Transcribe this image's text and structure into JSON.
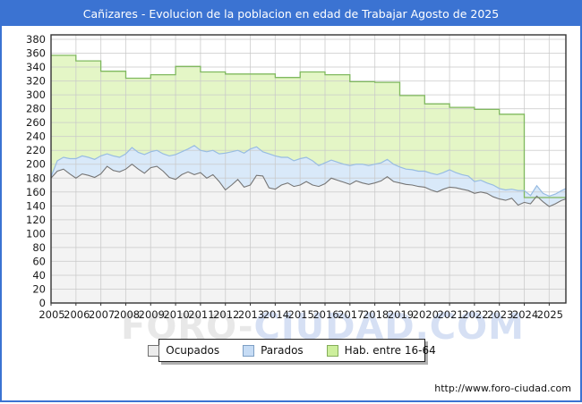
{
  "title": "Cañizares - Evolucion de la poblacion en edad de Trabajar Agosto de 2025",
  "watermark": {
    "left": "FORO-",
    "right": "CIUDAD.COM"
  },
  "footer": {
    "url": "http://www.foro-ciudad.com"
  },
  "colors": {
    "frame_blue": "#3b73d2",
    "grid": "#c9c9c9",
    "plot_border": "#333333",
    "ocupados_line": "#757575",
    "ocupados_fill": "#f3f3f3",
    "parados_line": "#98bce2",
    "parados_fill": "#d9e9f9",
    "hab_line": "#80b95f",
    "hab_fill": "#e4f6c6"
  },
  "legend": {
    "items": [
      {
        "label": "Ocupados",
        "fill": "#ececec",
        "border": "#707070"
      },
      {
        "label": "Parados",
        "fill": "#c6dcf5",
        "border": "#7d9fc4"
      },
      {
        "label": "Hab. entre 16-64",
        "fill": "#cdef9c",
        "border": "#84ad5a"
      }
    ]
  },
  "chart_data": {
    "type": "area",
    "title": "Cañizares - Evolucion de la poblacion en edad de Trabajar Agosto de 2025",
    "xlabel": "",
    "ylabel": "",
    "xlim": [
      2005,
      2025.67
    ],
    "ylim": [
      0,
      380
    ],
    "grid": true,
    "legend_position": "bottom",
    "y_ticks": [
      0,
      20,
      40,
      60,
      80,
      100,
      120,
      140,
      160,
      180,
      200,
      220,
      240,
      260,
      280,
      300,
      320,
      340,
      360,
      380
    ],
    "x_ticks": [
      2005,
      2006,
      2007,
      2008,
      2009,
      2010,
      2011,
      2012,
      2013,
      2014,
      2015,
      2016,
      2017,
      2018,
      2019,
      2020,
      2021,
      2022,
      2023,
      2024,
      2025
    ],
    "hab_16_64": {
      "name": "Hab. entre 16-64",
      "note": "yearly step series (padron); value drops sharply in 2024",
      "years": [
        2005,
        2006,
        2007,
        2008,
        2009,
        2010,
        2011,
        2012,
        2013,
        2014,
        2015,
        2016,
        2017,
        2018,
        2019,
        2020,
        2021,
        2022,
        2023,
        2024,
        2025
      ],
      "values": [
        357,
        349,
        334,
        324,
        329,
        341,
        333,
        330,
        330,
        325,
        333,
        329,
        319,
        318,
        299,
        287,
        282,
        279,
        272,
        152,
        152
      ]
    },
    "x": [
      2005.0,
      2005.25,
      2005.5,
      2005.75,
      2006.0,
      2006.25,
      2006.5,
      2006.75,
      2007.0,
      2007.25,
      2007.5,
      2007.75,
      2008.0,
      2008.25,
      2008.5,
      2008.75,
      2009.0,
      2009.25,
      2009.5,
      2009.75,
      2010.0,
      2010.25,
      2010.5,
      2010.75,
      2011.0,
      2011.25,
      2011.5,
      2011.75,
      2012.0,
      2012.25,
      2012.5,
      2012.75,
      2013.0,
      2013.25,
      2013.5,
      2013.75,
      2014.0,
      2014.25,
      2014.5,
      2014.75,
      2015.0,
      2015.25,
      2015.5,
      2015.75,
      2016.0,
      2016.25,
      2016.5,
      2016.75,
      2017.0,
      2017.25,
      2017.5,
      2017.75,
      2018.0,
      2018.25,
      2018.5,
      2018.75,
      2019.0,
      2019.25,
      2019.5,
      2019.75,
      2020.0,
      2020.25,
      2020.5,
      2020.75,
      2021.0,
      2021.25,
      2021.5,
      2021.75,
      2022.0,
      2022.25,
      2022.5,
      2022.75,
      2023.0,
      2023.25,
      2023.5,
      2023.75,
      2024.0,
      2024.25,
      2024.5,
      2024.75,
      2025.0,
      2025.25,
      2025.5,
      2025.67
    ],
    "series": [
      {
        "name": "Ocupados",
        "stacked_on": null,
        "values": [
          180,
          190,
          193,
          186,
          180,
          186,
          184,
          181,
          186,
          197,
          191,
          189,
          193,
          200,
          193,
          187,
          195,
          197,
          190,
          181,
          178,
          185,
          189,
          185,
          188,
          180,
          185,
          175,
          163,
          170,
          178,
          167,
          170,
          184,
          183,
          166,
          164,
          170,
          173,
          168,
          170,
          175,
          170,
          168,
          172,
          180,
          177,
          174,
          171,
          176,
          173,
          171,
          173,
          176,
          182,
          175,
          173,
          171,
          170,
          168,
          167,
          163,
          160,
          164,
          167,
          166,
          164,
          162,
          158,
          160,
          158,
          153,
          150,
          148,
          151,
          141,
          145,
          143,
          154,
          146,
          139,
          143,
          148,
          150
        ]
      },
      {
        "name": "Parados",
        "stacked_on": "Ocupados",
        "values": [
          2,
          15,
          17,
          22,
          28,
          26,
          26,
          26,
          26,
          18,
          21,
          21,
          22,
          24,
          24,
          27,
          23,
          23,
          25,
          31,
          36,
          33,
          33,
          42,
          32,
          38,
          35,
          40,
          53,
          48,
          42,
          49,
          52,
          41,
          35,
          49,
          48,
          40,
          37,
          37,
          38,
          35,
          35,
          30,
          30,
          26,
          26,
          26,
          27,
          24,
          27,
          27,
          27,
          26,
          25,
          25,
          23,
          22,
          22,
          22,
          23,
          24,
          25,
          24,
          25,
          22,
          21,
          21,
          17,
          17,
          15,
          17,
          15,
          15,
          13,
          21,
          17,
          12,
          15,
          12,
          15,
          14,
          14,
          15
        ]
      }
    ]
  }
}
